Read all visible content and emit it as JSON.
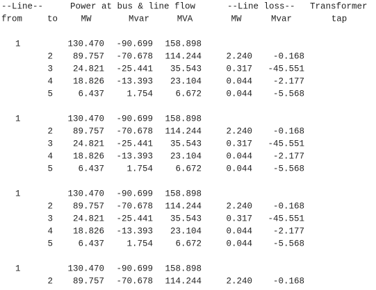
{
  "header": {
    "row1": [
      "--Line--",
      "Power at bus & line flow",
      "--Line loss--",
      "Transformer"
    ],
    "row2": [
      "from",
      "to",
      "MW",
      "Mvar",
      "MVA",
      "MW",
      "Mvar",
      "tap"
    ]
  },
  "blocks": [
    {
      "bus": {
        "from": "1",
        "mw": "130.470",
        "mvar": "-90.699",
        "mva": "158.898"
      },
      "lines": [
        {
          "to": "2",
          "mw": "89.757",
          "mvar": "-70.678",
          "mva": "114.244",
          "loss_mw": "2.240",
          "loss_mvar": "-0.168"
        },
        {
          "to": "3",
          "mw": "24.821",
          "mvar": "-25.441",
          "mva": "35.543",
          "loss_mw": "0.317",
          "loss_mvar": "-45.551"
        },
        {
          "to": "4",
          "mw": "18.826",
          "mvar": "-13.393",
          "mva": "23.104",
          "loss_mw": "0.044",
          "loss_mvar": "-2.177"
        },
        {
          "to": "5",
          "mw": "6.437",
          "mvar": "1.754",
          "mva": "6.672",
          "loss_mw": "0.044",
          "loss_mvar": "-5.568"
        }
      ]
    },
    {
      "bus": {
        "from": "1",
        "mw": "130.470",
        "mvar": "-90.699",
        "mva": "158.898"
      },
      "lines": [
        {
          "to": "2",
          "mw": "89.757",
          "mvar": "-70.678",
          "mva": "114.244",
          "loss_mw": "2.240",
          "loss_mvar": "-0.168"
        },
        {
          "to": "3",
          "mw": "24.821",
          "mvar": "-25.441",
          "mva": "35.543",
          "loss_mw": "0.317",
          "loss_mvar": "-45.551"
        },
        {
          "to": "4",
          "mw": "18.826",
          "mvar": "-13.393",
          "mva": "23.104",
          "loss_mw": "0.044",
          "loss_mvar": "-2.177"
        },
        {
          "to": "5",
          "mw": "6.437",
          "mvar": "1.754",
          "mva": "6.672",
          "loss_mw": "0.044",
          "loss_mvar": "-5.568"
        }
      ]
    },
    {
      "bus": {
        "from": "1",
        "mw": "130.470",
        "mvar": "-90.699",
        "mva": "158.898"
      },
      "lines": [
        {
          "to": "2",
          "mw": "89.757",
          "mvar": "-70.678",
          "mva": "114.244",
          "loss_mw": "2.240",
          "loss_mvar": "-0.168"
        },
        {
          "to": "3",
          "mw": "24.821",
          "mvar": "-25.441",
          "mva": "35.543",
          "loss_mw": "0.317",
          "loss_mvar": "-45.551"
        },
        {
          "to": "4",
          "mw": "18.826",
          "mvar": "-13.393",
          "mva": "23.104",
          "loss_mw": "0.044",
          "loss_mvar": "-2.177"
        },
        {
          "to": "5",
          "mw": "6.437",
          "mvar": "1.754",
          "mva": "6.672",
          "loss_mw": "0.044",
          "loss_mvar": "-5.568"
        }
      ]
    },
    {
      "bus": {
        "from": "1",
        "mw": "130.470",
        "mvar": "-90.699",
        "mva": "158.898"
      },
      "lines": [
        {
          "to": "2",
          "mw": "89.757",
          "mvar": "-70.678",
          "mva": "114.244",
          "loss_mw": "2.240",
          "loss_mvar": "-0.168"
        }
      ]
    }
  ]
}
